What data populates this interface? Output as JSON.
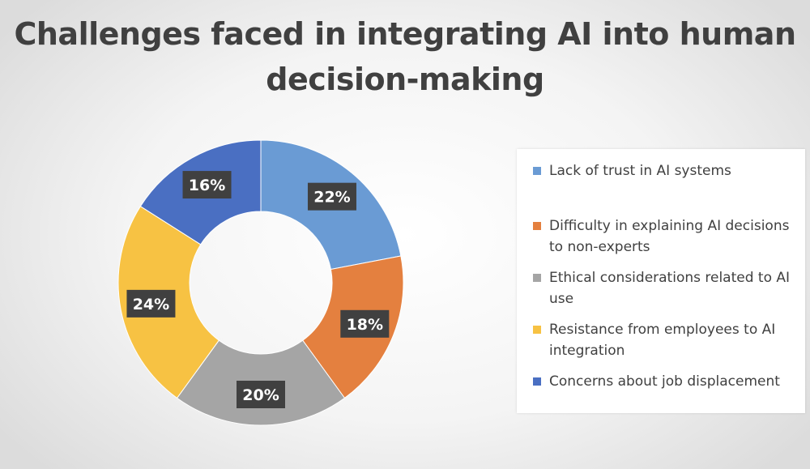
{
  "chart_data": {
    "type": "pie",
    "title": "Challenges faced in integrating AI into human decision-making",
    "title_lines": [
      "Challenges faced in integrating AI into human",
      "decision-making"
    ],
    "hole": true,
    "legend_position": "right",
    "categories": [
      "Lack of trust in AI systems",
      "Difficulty in explaining AI decisions to non-experts",
      "Ethical considerations related to AI use",
      "Resistance from employees to AI integration",
      "Concerns about job displacement"
    ],
    "legend_lines": [
      [
        "Lack of trust in AI systems"
      ],
      [
        "Difficulty in explaining AI decisions",
        "to non-experts"
      ],
      [
        "Ethical considerations related to AI",
        "use"
      ],
      [
        "Resistance from employees to AI",
        "integration"
      ],
      [
        "Concerns about job displacement"
      ]
    ],
    "values": [
      22,
      18,
      20,
      24,
      16
    ],
    "data_labels": [
      "22%",
      "18%",
      "20%",
      "24%",
      "16%"
    ],
    "colors": [
      "#6a9bd4",
      "#e4803f",
      "#a5a5a5",
      "#f7c243",
      "#4a6fc2"
    ]
  }
}
